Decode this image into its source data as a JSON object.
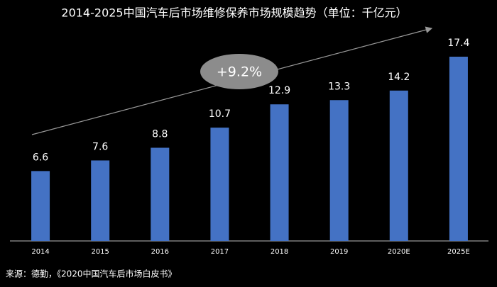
{
  "chart_data": {
    "type": "bar",
    "title": "2014-2025中国汽车后市场维修保养市场规模趋势（单位：千亿元）",
    "categories": [
      "2014",
      "2015",
      "2016",
      "2017",
      "2018",
      "2019",
      "2020E",
      "2025E"
    ],
    "values": [
      6.6,
      7.6,
      8.8,
      10.7,
      12.9,
      13.3,
      14.2,
      17.4
    ],
    "color": "#4472c4",
    "annotation": "+9.2%",
    "source": "来源：德勤，《2020中国汽车后市场白皮书》"
  }
}
